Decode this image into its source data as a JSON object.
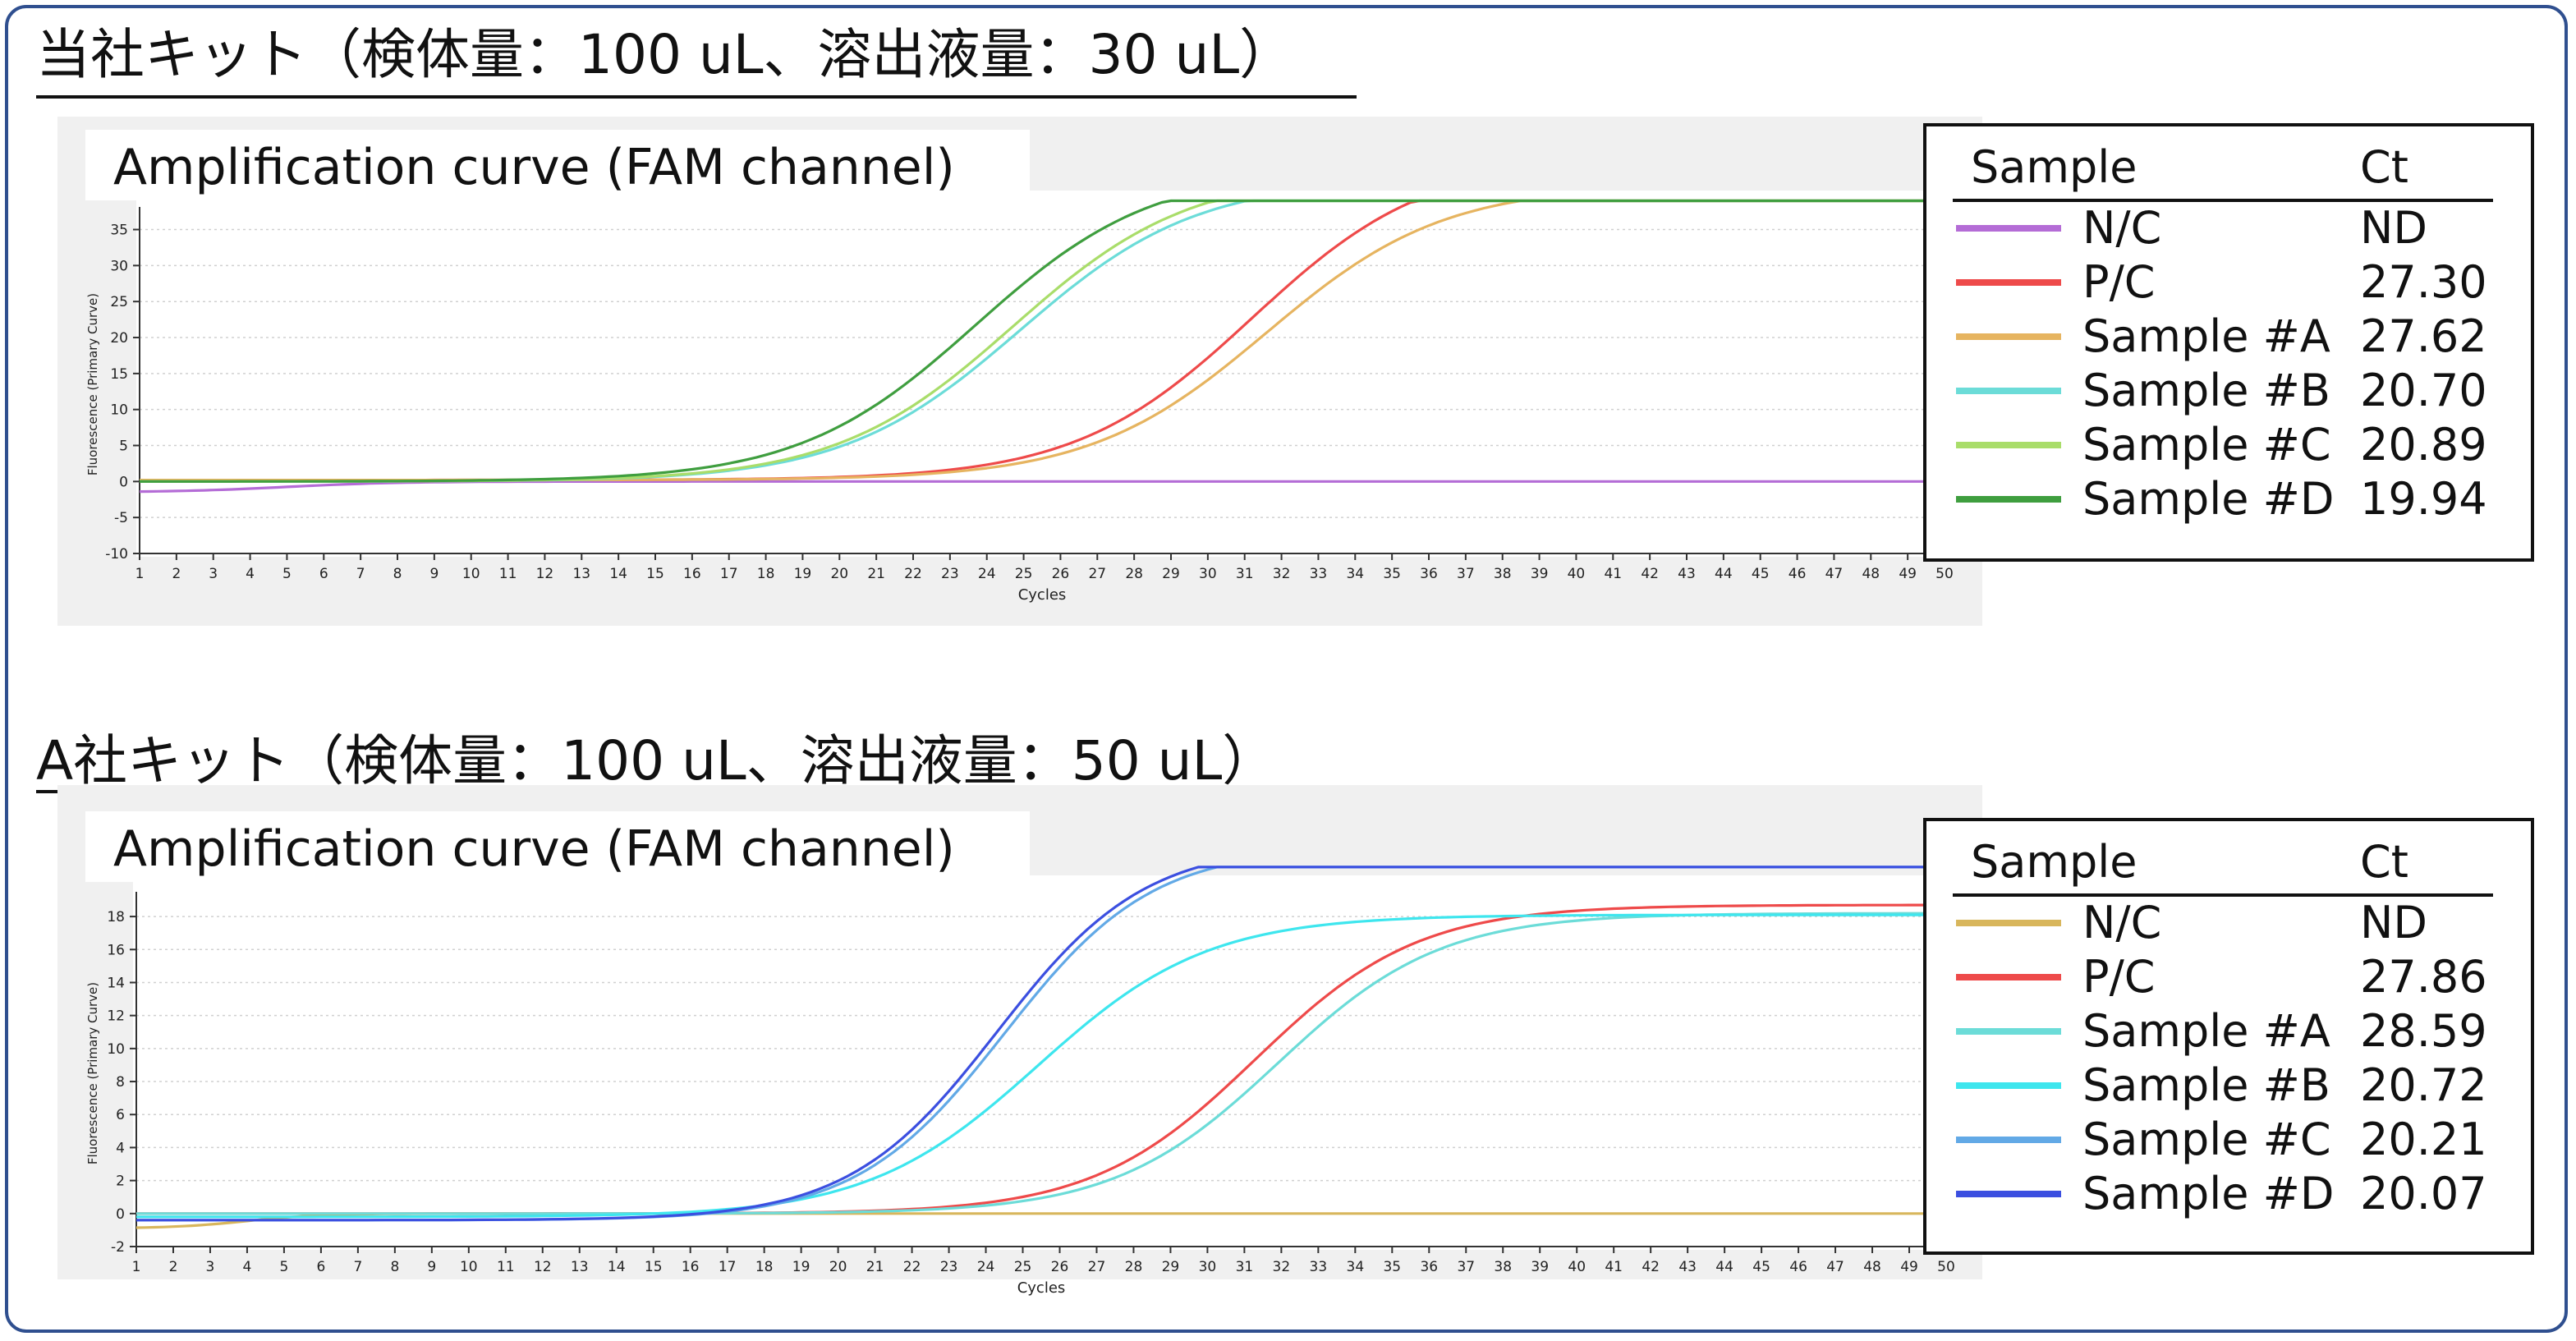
{
  "panels": [
    {
      "heading": "当社キット（検体量：100 uL、溶出液量：30 uL）",
      "legend_header_sample": "Sample",
      "legend_header_ct": "Ct",
      "chart_data": {
        "type": "line",
        "subtitle": "Amplification curve (FAM channel)",
        "xlabel": "Cycles",
        "ylabel": "Fluorescence (Primary Curve)",
        "xlim": [
          1,
          50
        ],
        "ylim": [
          -10,
          37
        ],
        "x_ticks": [
          1,
          2,
          3,
          4,
          5,
          6,
          7,
          8,
          9,
          10,
          11,
          12,
          13,
          14,
          15,
          16,
          17,
          18,
          19,
          20,
          21,
          22,
          23,
          24,
          25,
          26,
          27,
          28,
          29,
          30,
          31,
          32,
          33,
          34,
          35,
          36,
          37,
          38,
          39,
          40,
          41,
          42,
          43,
          44,
          45,
          46,
          47,
          48,
          49,
          50
        ],
        "y_ticks": [
          -10,
          -5,
          0,
          5,
          10,
          15,
          20,
          25,
          30,
          35
        ],
        "grid": "horizontal",
        "legend_position": "right",
        "series": [
          {
            "name": "N/C",
            "ct": "ND",
            "color": "#b46cd6",
            "plateau": 0,
            "midpoint": 0,
            "slope": 1,
            "base": -1.5,
            "base_mid": 5,
            "base_width": 3
          },
          {
            "name": "P/C",
            "ct": "27.30",
            "color": "#ee4a4a",
            "plateau": 45,
            "midpoint": 31.2,
            "slope": 2.4,
            "base": 0.2,
            "base_mid": 0,
            "base_width": 1
          },
          {
            "name": "Sample #A",
            "ct": "27.62",
            "color": "#e6b460",
            "plateau": 41,
            "midpoint": 31.6,
            "slope": 2.4,
            "base": 0.2,
            "base_mid": 0,
            "base_width": 1
          },
          {
            "name": "Sample #B",
            "ct": "20.70",
            "color": "#6cdcd8",
            "plateau": 42,
            "midpoint": 24.9,
            "slope": 2.4,
            "base": 0,
            "base_mid": 0,
            "base_width": 1
          },
          {
            "name": "Sample #C",
            "ct": "20.89",
            "color": "#a9dd6a",
            "plateau": 43,
            "midpoint": 24.7,
            "slope": 2.4,
            "base": 0,
            "base_mid": 0,
            "base_width": 1
          },
          {
            "name": "Sample #D",
            "ct": "19.94",
            "color": "#3f9e3f",
            "plateau": 43.5,
            "midpoint": 23.7,
            "slope": 2.4,
            "base": 0,
            "base_mid": 0,
            "base_width": 1
          }
        ]
      }
    },
    {
      "heading": "A社キット（検体量：100 uL、溶出液量：50 uL）",
      "legend_header_sample": "Sample",
      "legend_header_ct": "Ct",
      "chart_data": {
        "type": "line",
        "subtitle": "Amplification curve (FAM channel)",
        "xlabel": "Cycles",
        "ylabel": "Fluorescence (Primary Curve)",
        "xlim": [
          1,
          50
        ],
        "ylim": [
          -2,
          19
        ],
        "x_ticks": [
          1,
          2,
          3,
          4,
          5,
          6,
          7,
          8,
          9,
          10,
          11,
          12,
          13,
          14,
          15,
          16,
          17,
          18,
          19,
          20,
          21,
          22,
          23,
          24,
          25,
          26,
          27,
          28,
          29,
          30,
          31,
          32,
          33,
          34,
          35,
          36,
          37,
          38,
          39,
          40,
          41,
          42,
          43,
          44,
          45,
          46,
          47,
          48,
          49,
          50
        ],
        "y_ticks": [
          -2,
          0,
          2,
          4,
          6,
          8,
          10,
          12,
          14,
          16,
          18
        ],
        "grid": "horizontal",
        "legend_position": "right",
        "series": [
          {
            "name": "N/C",
            "ct": "ND",
            "color": "#d8b65c",
            "plateau": 0,
            "midpoint": 0,
            "slope": 1,
            "base": -0.9,
            "base_mid": 4,
            "base_width": 2
          },
          {
            "name": "P/C",
            "ct": "27.86",
            "color": "#ee4a4a",
            "plateau": 18.7,
            "midpoint": 31.3,
            "slope": 2.2,
            "base": 0,
            "base_mid": 0,
            "base_width": 1
          },
          {
            "name": "Sample #A",
            "ct": "28.59",
            "color": "#6cdcd8",
            "plateau": 18.2,
            "midpoint": 31.9,
            "slope": 2.2,
            "base": 0,
            "base_mid": 0,
            "base_width": 1
          },
          {
            "name": "Sample #B",
            "ct": "20.72",
            "color": "#3ee6ee",
            "plateau": 18.3,
            "midpoint": 25.4,
            "slope": 2.3,
            "base": -0.2,
            "base_mid": 0,
            "base_width": 1
          },
          {
            "name": "Sample #C",
            "ct": "20.21",
            "color": "#62a9e6",
            "plateau": 22.6,
            "midpoint": 24.5,
            "slope": 2.0,
            "base": -0.4,
            "base_mid": 0,
            "base_width": 1
          },
          {
            "name": "Sample #D",
            "ct": "20.07",
            "color": "#3b4fe0",
            "plateau": 22.8,
            "midpoint": 24.3,
            "slope": 2.0,
            "base": -0.4,
            "base_mid": 0,
            "base_width": 1
          }
        ]
      }
    }
  ]
}
